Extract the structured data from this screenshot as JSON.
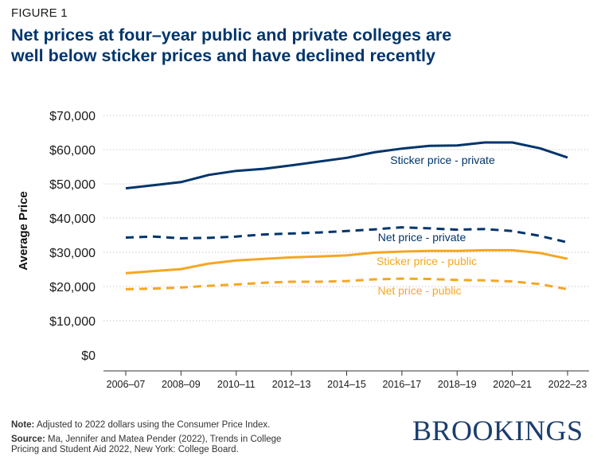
{
  "header": {
    "figure_label": "FIGURE 1",
    "title_line1": "Net prices at four–year public and private colleges are",
    "title_line2": "well below sticker prices and have declined recently"
  },
  "footer": {
    "note_label": "Note:",
    "note_text": "Adjusted to 2022 dollars using the Consumer Price Index.",
    "source_label": "Source:",
    "source_line1": "Ma, Jennifer and Matea Pender (2022), Trends in College",
    "source_line2": "Pricing and Student Aid 2022, New York: College Board.",
    "brand": "BROOKINGS"
  },
  "chart_data": {
    "type": "line",
    "ylabel": "Average Price",
    "ylim": [
      0,
      70000
    ],
    "y_ticks": [
      0,
      10000,
      20000,
      30000,
      40000,
      50000,
      60000,
      70000
    ],
    "y_tick_labels": [
      "$0",
      "$10,000",
      "$20,000",
      "$30,000",
      "$40,000",
      "$50,000",
      "$60,000",
      "$70,000"
    ],
    "grid": "horizontal dotted",
    "x": [
      "2006–07",
      "2007–08",
      "2008–09",
      "2009–10",
      "2010–11",
      "2011–12",
      "2012–13",
      "2013–14",
      "2014–15",
      "2015–16",
      "2016–17",
      "2017–18",
      "2018–19",
      "2019–20",
      "2020–21",
      "2021–22",
      "2022–23"
    ],
    "x_tick_labels": [
      "2006–07",
      "2008–09",
      "2010–11",
      "2012–13",
      "2014–15",
      "2016–17",
      "2018–19",
      "2020–21",
      "2022–23"
    ],
    "series": [
      {
        "name": "Sticker price - private",
        "color": "#00356b",
        "style": "solid",
        "values": [
          48700,
          49600,
          50500,
          52600,
          53800,
          54400,
          55400,
          56500,
          57600,
          59200,
          60300,
          61100,
          61200,
          62100,
          62100,
          60400,
          57700
        ]
      },
      {
        "name": "Net price - private",
        "color": "#00356b",
        "style": "dashed",
        "values": [
          34300,
          34600,
          34100,
          34200,
          34600,
          35200,
          35500,
          35800,
          36200,
          36700,
          37300,
          37000,
          36600,
          36800,
          36200,
          34800,
          32900
        ]
      },
      {
        "name": "Sticker price - public",
        "color": "#f5a623",
        "style": "solid",
        "values": [
          23900,
          24500,
          25100,
          26700,
          27600,
          28100,
          28500,
          28800,
          29100,
          29900,
          30200,
          30400,
          30400,
          30600,
          30600,
          29800,
          28100
        ]
      },
      {
        "name": "Net price - public",
        "color": "#f5a623",
        "style": "dashed",
        "values": [
          19200,
          19400,
          19700,
          20200,
          20600,
          21100,
          21400,
          21400,
          21600,
          22100,
          22300,
          22200,
          21900,
          21800,
          21500,
          20700,
          19200
        ]
      }
    ]
  }
}
